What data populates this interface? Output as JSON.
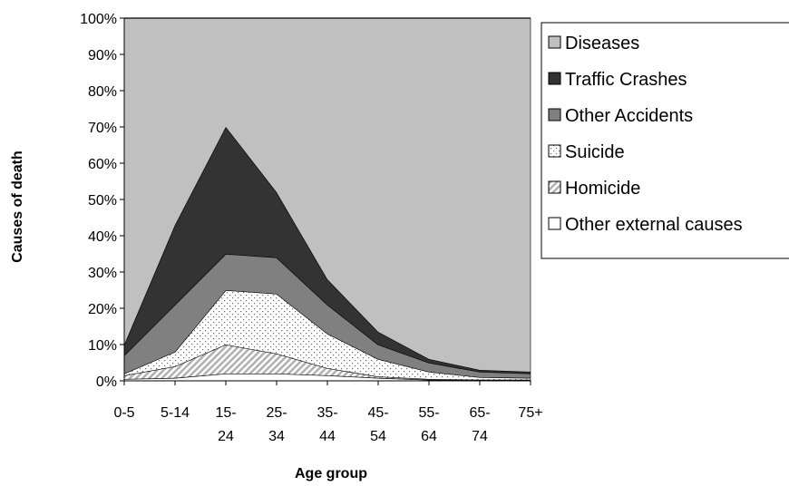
{
  "chart_data": {
    "type": "stacked_area_percent",
    "y_axis_label": "Causes of death",
    "x_axis_label": "Age group",
    "categories": [
      "0-5",
      "5-14",
      "15-24",
      "25-34",
      "35-44",
      "45-54",
      "55-64",
      "65-74",
      "75+"
    ],
    "ylim": [
      0,
      100
    ],
    "yticks": [
      {
        "value": 0,
        "label": "0%"
      },
      {
        "value": 10,
        "label": "10%"
      },
      {
        "value": 20,
        "label": "20%"
      },
      {
        "value": 30,
        "label": "30%"
      },
      {
        "value": 40,
        "label": "40%"
      },
      {
        "value": 50,
        "label": "50%"
      },
      {
        "value": 60,
        "label": "60%"
      },
      {
        "value": 70,
        "label": "70%"
      },
      {
        "value": 80,
        "label": "80%"
      },
      {
        "value": 90,
        "label": "90%"
      },
      {
        "value": 100,
        "label": "100%"
      }
    ],
    "legend": "right",
    "series": [
      {
        "name": "Diseases",
        "color": "#c0c0c0",
        "values": [
          90,
          57,
          30,
          48,
          72,
          86.5,
          94,
          97,
          97.5
        ]
      },
      {
        "name": "Traffic Crashes",
        "color": "#333333",
        "values": [
          3,
          22,
          35,
          18,
          7,
          3.5,
          1,
          0.5,
          0.5
        ]
      },
      {
        "name": "Other Accidents",
        "color": "#808080",
        "values": [
          5,
          13,
          10,
          10,
          8,
          4,
          2.5,
          1.5,
          1.2
        ]
      },
      {
        "name": "Suicide",
        "color": "#ffffff",
        "pattern": "dots",
        "values": [
          0.5,
          4,
          15,
          16.5,
          9.5,
          4.8,
          2,
          0.7,
          0.5
        ]
      },
      {
        "name": "Homicide",
        "color": "#ffffff",
        "pattern": "hatch",
        "values": [
          1,
          3.2,
          8,
          5.5,
          2,
          0.4,
          0.2,
          0.1,
          0.1
        ]
      },
      {
        "name": "Other external causes",
        "color": "#ffffff",
        "values": [
          0.5,
          0.8,
          2,
          2,
          1.5,
          0.8,
          0.3,
          0.2,
          0.2
        ]
      }
    ]
  }
}
